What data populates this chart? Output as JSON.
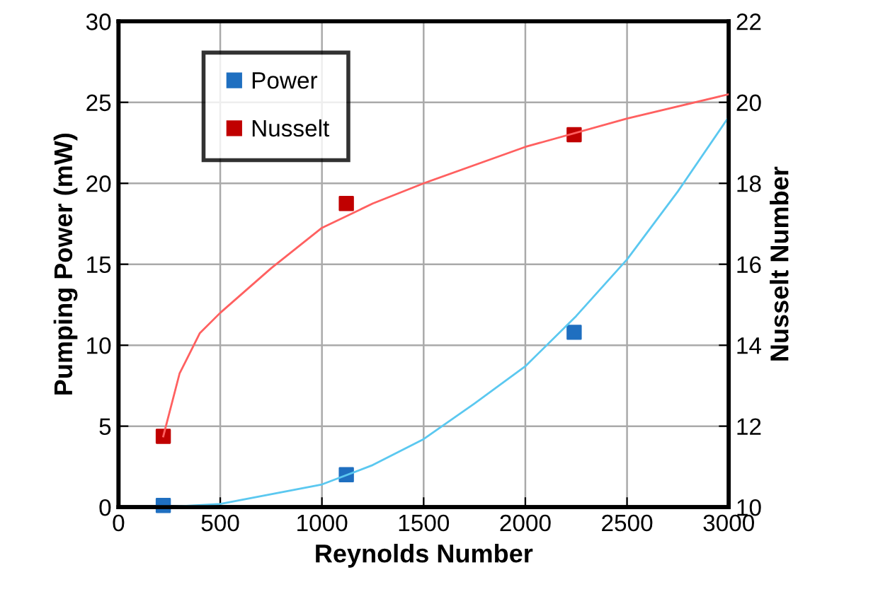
{
  "chart_data": {
    "type": "scatter",
    "xlabel": "Reynolds Number",
    "ylabel": "Pumping Power (mW)",
    "y2label": "Nusselt Number",
    "xlim": [
      0,
      3000
    ],
    "xticks": [
      0,
      500,
      1000,
      1500,
      2000,
      2500,
      3000
    ],
    "ylim": [
      0,
      30
    ],
    "yticks": [
      0,
      5,
      10,
      15,
      20,
      25,
      30
    ],
    "y2lim": [
      10,
      22
    ],
    "y2ticks": [
      10,
      12,
      14,
      16,
      18,
      20,
      22
    ],
    "grid": true,
    "legend": "top left",
    "series": [
      {
        "name": "Power",
        "marker": "square",
        "color": "#1f6fc0",
        "x": [
          220,
          1120,
          2240
        ],
        "values": [
          0.1,
          2.0,
          10.8
        ]
      },
      {
        "name": "Nusselt",
        "marker": "square",
        "axis": "y2",
        "color": "#c00000",
        "x": [
          220,
          1120,
          2240
        ],
        "values": [
          11.75,
          17.5,
          19.2
        ]
      },
      {
        "type": "line",
        "color": "#5bc8f0",
        "x": [
          220,
          500,
          1000,
          1250,
          1500,
          1750,
          2000,
          2250,
          2500,
          2750,
          3000
        ],
        "values": [
          0.0,
          0.2,
          1.4,
          2.6,
          4.2,
          6.4,
          8.7,
          11.8,
          15.3,
          19.5,
          24.1
        ]
      },
      {
        "type": "line",
        "axis": "y2",
        "color": "#ff6060",
        "x": [
          220,
          300,
          400,
          500,
          750,
          1000,
          1250,
          1500,
          2000,
          2500,
          3000
        ],
        "values": [
          11.75,
          13.3,
          14.3,
          14.8,
          15.9,
          16.9,
          17.5,
          18.0,
          18.9,
          19.6,
          20.2
        ]
      }
    ]
  }
}
